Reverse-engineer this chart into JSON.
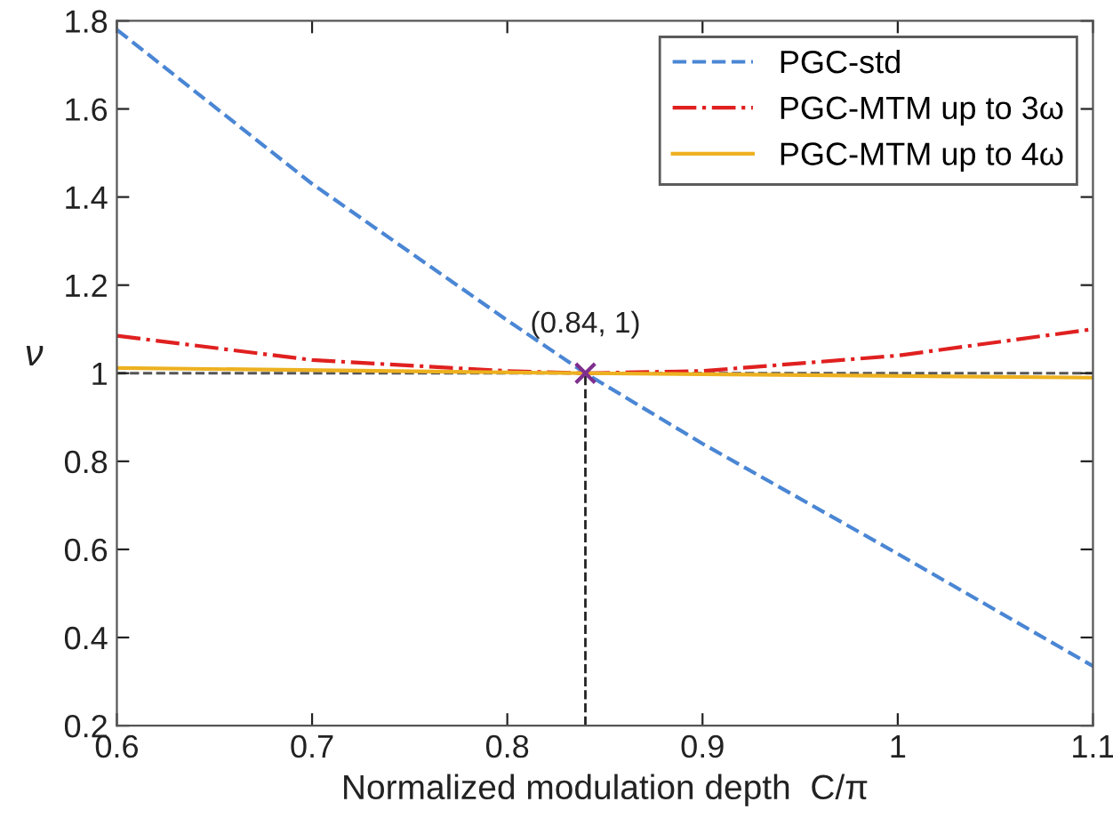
{
  "chart_data": {
    "type": "line",
    "xlabel": "Normalized modulation depth  C/π",
    "ylabel": "ν",
    "xlim": [
      0.6,
      1.1
    ],
    "xticks": [
      0.6,
      0.7,
      0.8,
      0.9,
      1,
      1.1
    ],
    "ylim": [
      0.2,
      1.8
    ],
    "yticks": [
      0.2,
      0.4,
      0.6,
      0.8,
      1,
      1.2,
      1.4,
      1.6,
      1.8
    ],
    "grid": false,
    "legend": "top right",
    "series": [
      {
        "name": "PGC-std",
        "color": "#4a86d4",
        "line_style": "dashed",
        "x": [
          0.6,
          0.7,
          0.8,
          0.84,
          0.9,
          1.0,
          1.1
        ],
        "values": [
          1.78,
          1.43,
          1.12,
          1.0,
          0.84,
          0.59,
          0.335
        ]
      },
      {
        "name": "PGC-MTM up to 3ω",
        "color": "#e02020",
        "line_style": "dashdot",
        "x": [
          0.6,
          0.7,
          0.8,
          0.84,
          0.9,
          1.0,
          1.1
        ],
        "values": [
          1.085,
          1.03,
          1.005,
          1.0,
          1.005,
          1.04,
          1.1
        ]
      },
      {
        "name": "PGC-MTM up to 4ω",
        "color": "#edb120",
        "line_style": "solid",
        "x": [
          0.6,
          0.84,
          1.1
        ],
        "values": [
          1.012,
          1.0,
          0.99
        ]
      },
      {
        "type": "scatter",
        "color": "#7e2f8e",
        "marker": "cross",
        "x": [
          0.84
        ],
        "values": [
          1.0
        ]
      }
    ],
    "ref_lines": [
      {
        "axis": "y",
        "value": 1,
        "color": "#555555",
        "line_style": "dashed"
      },
      {
        "axis": "x",
        "value": 0.84,
        "color": "#222222",
        "line_style": "dashed"
      }
    ],
    "annotations": [
      {
        "text": "(0.84, 1)",
        "x": 0.84,
        "y": 1
      }
    ]
  }
}
